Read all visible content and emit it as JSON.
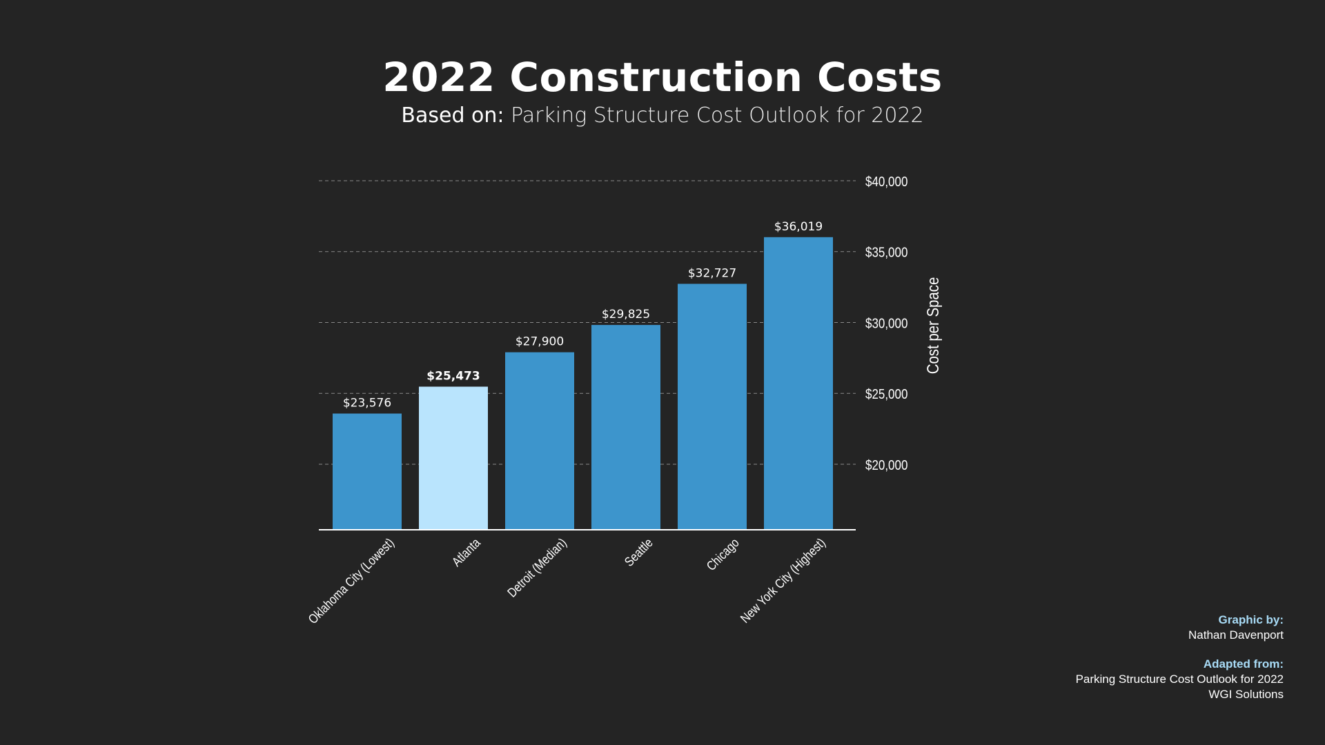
{
  "header": {
    "title": "2022 Construction Costs",
    "subtitle_label": "Based on:",
    "subtitle_text": "Parking Structure Cost Outlook for 2022"
  },
  "credits": {
    "graphic_heading": "Graphic by:",
    "graphic_name": "Nathan Davenport",
    "adapted_heading": "Adapted from:",
    "adapted_source": "Parking Structure Cost Outlook for 2022",
    "adapted_org": "WGI Solutions"
  },
  "colors": {
    "bar": "#3d95cc",
    "highlight_bar": "#b9e4fd",
    "credit_heading": "#a9dcf7",
    "background": "#242424"
  },
  "chart_data": {
    "type": "bar",
    "title": "2022 Construction Costs",
    "ylabel": "Cost per Space",
    "ylim": [
      15000,
      40000
    ],
    "yticks": [
      20000,
      25000,
      30000,
      35000,
      40000
    ],
    "ytick_labels": [
      "$20,000",
      "$25,000",
      "$30,000",
      "$35,000",
      "$40,000"
    ],
    "grid": true,
    "categories": [
      "Oklahoma City (Lowest)",
      "Atlanta",
      "Detroit (Median)",
      "Seattle",
      "Chicago",
      "New York City (Highest)"
    ],
    "values": [
      23576,
      25473,
      27900,
      29825,
      32727,
      36019
    ],
    "value_labels": [
      "$23,576",
      "$25,473",
      "$27,900",
      "$29,825",
      "$32,727",
      "$36,019"
    ],
    "highlight_index": 1
  }
}
